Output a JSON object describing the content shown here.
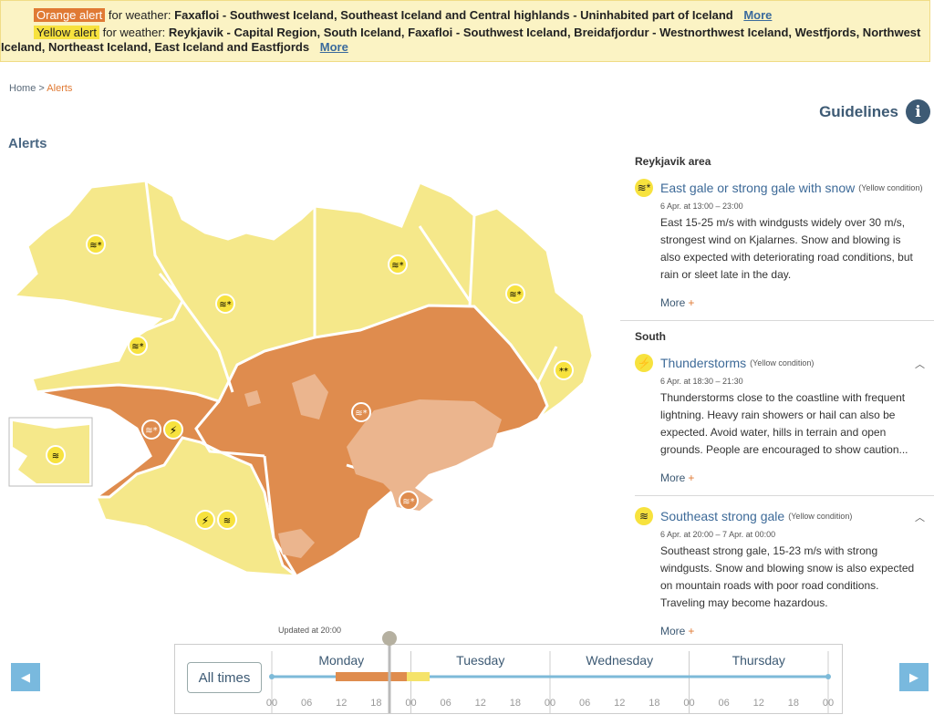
{
  "banner": {
    "orange_tag": "Orange alert",
    "orange_for": "for weather:",
    "orange_regions": "Faxafloi - Southwest Iceland, Southeast Iceland and Central highlands - Uninhabited part of Iceland",
    "yellow_tag": "Yellow alert",
    "yellow_for": "for weather:",
    "yellow_regions_1": "Reykjavik - Capital Region, South Iceland, Faxafloi - Southwest Iceland, Breidafjordur - Westnorthwest Iceland, Westfjords, Northwest",
    "yellow_regions_2": "Iceland, Northeast Iceland, East Iceland and Eastfjords",
    "more": "More"
  },
  "breadcrumb": {
    "home": "Home",
    "sep": ">",
    "current": "Alerts"
  },
  "guidelines": {
    "label": "Guidelines",
    "icon": "info-icon",
    "glyph": "i"
  },
  "title": "Alerts",
  "map": {
    "colors": {
      "yellow": "#f5e88a",
      "orange": "#df8c4e",
      "highland": "#ebb58e",
      "border": "#ffffff"
    }
  },
  "regions": [
    {
      "name": "Reykjavik area",
      "warnings": [
        {
          "title": "East gale or strong gale with snow",
          "condition": "(Yellow condition)",
          "icon": "wind-snow-icon",
          "glyph": "≋*",
          "time": "6 Apr. at 13:00 – 23:00",
          "text": "East 15-25 m/s with windgusts widely over 30 m/s, strongest wind on Kjalarnes. Snow and blowing is also expected with deteriorating road conditions, but rain or sleet late in the day.",
          "more": "More"
        }
      ]
    },
    {
      "name": "South",
      "warnings": [
        {
          "title": "Thunderstorms",
          "condition": "(Yellow condition)",
          "icon": "lightning-icon",
          "glyph": "⚡",
          "time": "6 Apr. at 18:30 – 21:30",
          "text": "Thunderstorms close to the coastline with frequent lightning. Heavy rain showers or hail can also be expected. Avoid water, hills in terrain and open grounds. People are encouraged to show caution...",
          "more": "More"
        },
        {
          "title": "Southeast strong gale",
          "condition": "(Yellow condition)",
          "icon": "wind-icon",
          "glyph": "≋",
          "time": "6 Apr. at 20:00 – 7 Apr. at 00:00",
          "text": "Southeast strong gale, 15-23 m/s with strong windgusts. Snow and blowing snow is also expected on mountain roads with poor road conditions. Traveling may become hazardous.",
          "more": "More"
        }
      ]
    }
  ],
  "timeline": {
    "updated": "Updated at 20:00",
    "all_times": "All times",
    "days": [
      "Monday",
      "Tuesday",
      "Wednesday",
      "Thursday"
    ],
    "hours": [
      "00",
      "06",
      "12",
      "18",
      "00",
      "06",
      "12",
      "18",
      "00",
      "06",
      "12",
      "18",
      "00",
      "06",
      "12",
      "18",
      "00"
    ],
    "prev": "◀",
    "next": "▶",
    "colors": {
      "track": "#7dbad8",
      "orange": "#df8c4e",
      "yellow": "#f5e36a"
    }
  }
}
